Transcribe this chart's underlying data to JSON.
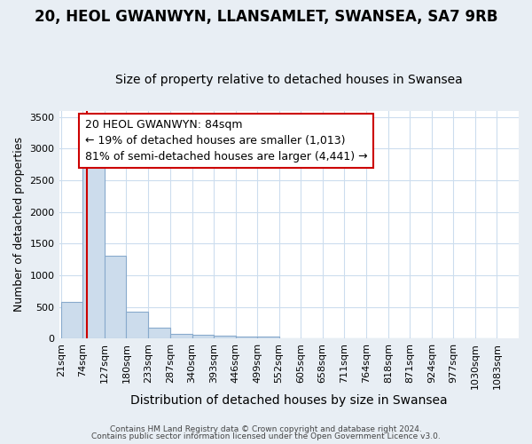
{
  "title": "20, HEOL GWANWYN, LLANSAMLET, SWANSEA, SA7 9RB",
  "subtitle": "Size of property relative to detached houses in Swansea",
  "xlabel": "Distribution of detached houses by size in Swansea",
  "ylabel": "Number of detached properties",
  "bins": [
    21,
    74,
    127,
    180,
    233,
    287,
    340,
    393,
    446,
    499,
    552,
    605,
    658,
    711,
    764,
    818,
    871,
    924,
    977,
    1030,
    1083
  ],
  "counts": [
    580,
    2950,
    1310,
    420,
    170,
    80,
    55,
    40,
    35,
    35,
    0,
    0,
    0,
    0,
    0,
    0,
    0,
    0,
    0,
    0
  ],
  "bar_color": "#ccdcec",
  "bar_edge_color": "#88aacc",
  "property_line_x": 84,
  "property_line_color": "#cc0000",
  "ylim": [
    0,
    3600
  ],
  "yticks": [
    0,
    500,
    1000,
    1500,
    2000,
    2500,
    3000,
    3500
  ],
  "annotation_text": "20 HEOL GWANWYN: 84sqm\n← 19% of detached houses are smaller (1,013)\n81% of semi-detached houses are larger (4,441) →",
  "annotation_box_color": "#ffffff",
  "annotation_box_edge": "#cc0000",
  "footer_line1": "Contains HM Land Registry data © Crown copyright and database right 2024.",
  "footer_line2": "Contains public sector information licensed under the Open Government Licence v3.0.",
  "fig_background_color": "#e8eef4",
  "plot_background_color": "#ffffff",
  "grid_color": "#ccddee",
  "title_fontsize": 12,
  "subtitle_fontsize": 10,
  "xlabel_fontsize": 10,
  "ylabel_fontsize": 9,
  "tick_fontsize": 8,
  "annotation_fontsize": 9
}
